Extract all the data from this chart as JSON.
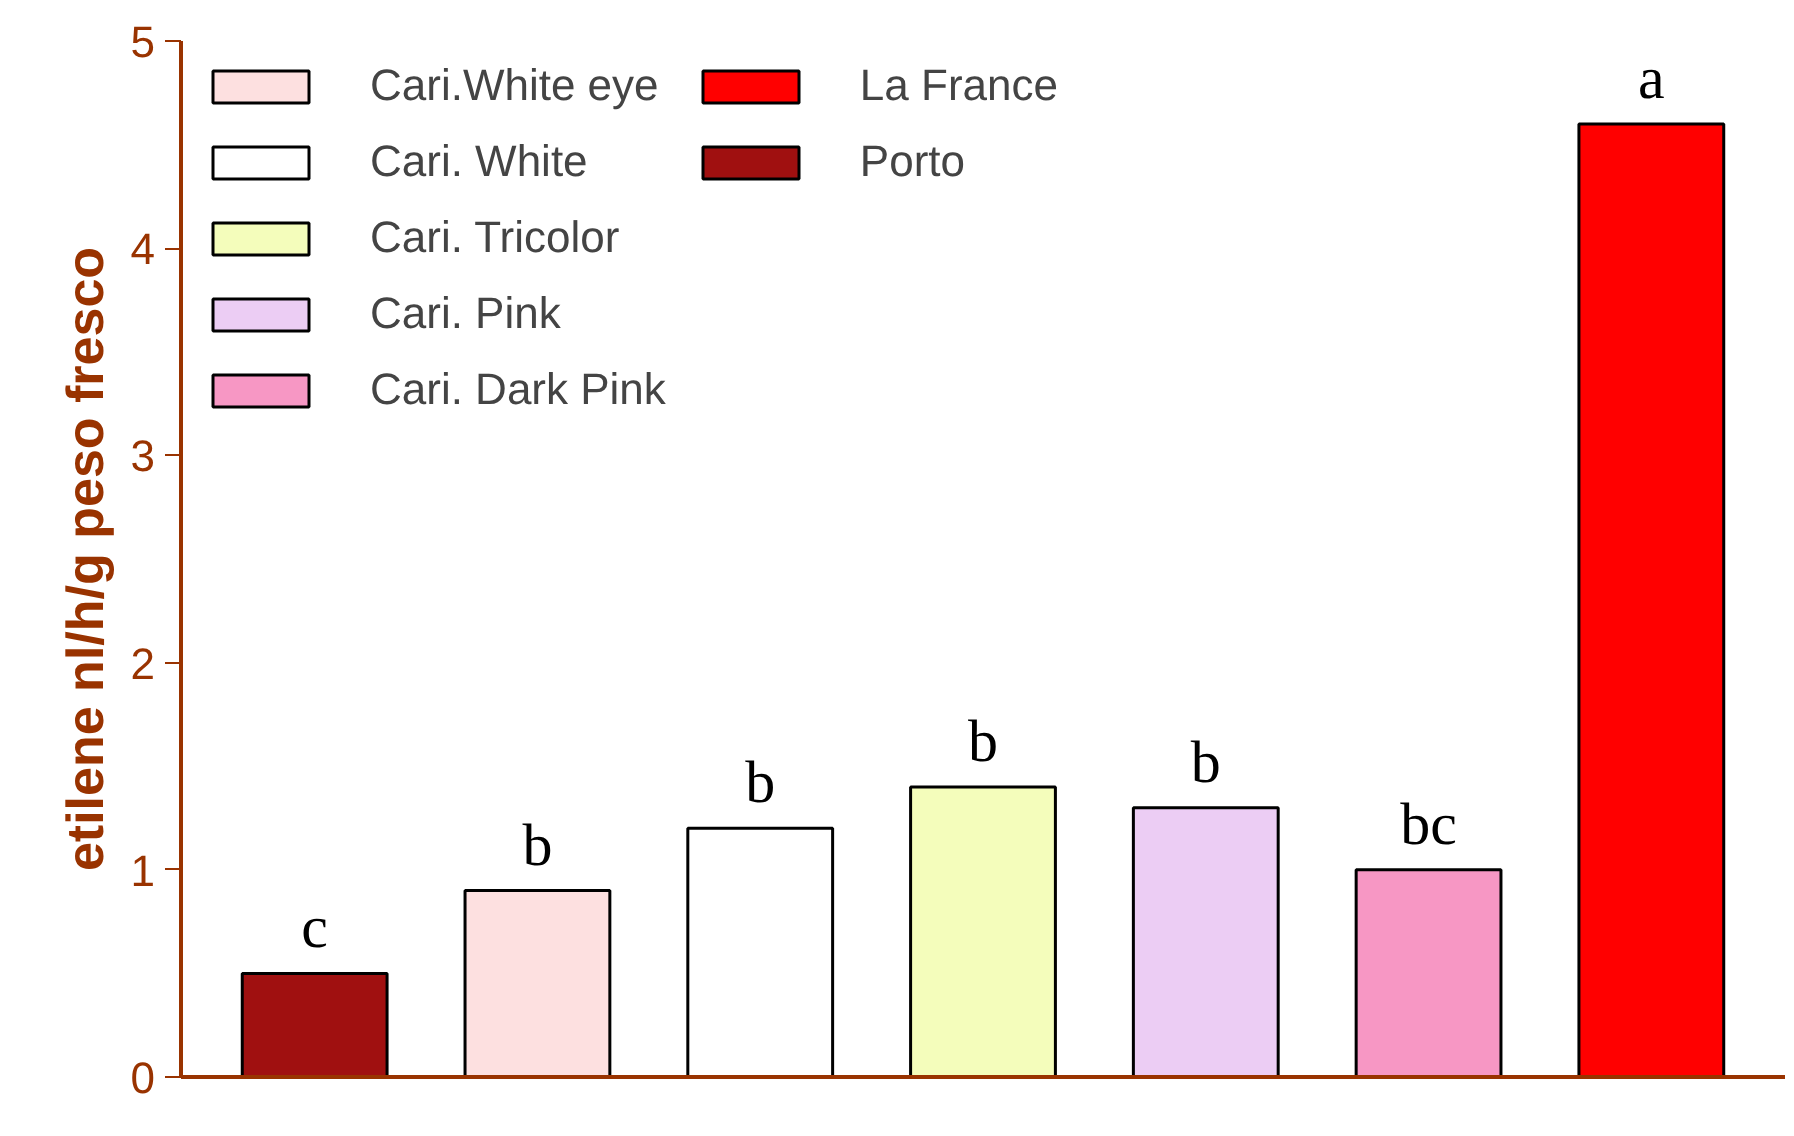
{
  "chart_data": {
    "type": "bar",
    "ylabel": "etilene nl/h/g peso fresco",
    "categories": [
      null,
      null,
      null,
      null,
      null,
      null,
      null
    ],
    "series": [
      {
        "name": "Porto",
        "color": "#a01010",
        "values": [
          0.5,
          null,
          null,
          null,
          null,
          null,
          null
        ],
        "value_labels": [
          "c",
          null,
          null,
          null,
          null,
          null,
          null
        ]
      },
      {
        "name": "Cari.White eye",
        "color": "#fde0e0",
        "values": [
          null,
          0.9,
          null,
          null,
          null,
          null,
          null
        ],
        "value_labels": [
          null,
          "b",
          null,
          null,
          null,
          null,
          null
        ]
      },
      {
        "name": "Cari. White",
        "color": "#ffffff",
        "values": [
          null,
          null,
          1.2,
          null,
          null,
          null,
          null
        ],
        "value_labels": [
          null,
          null,
          "b",
          null,
          null,
          null,
          null
        ]
      },
      {
        "name": "Cari. Tricolor",
        "color": "#f4fdbb",
        "values": [
          null,
          null,
          null,
          1.4,
          null,
          null,
          null
        ],
        "value_labels": [
          null,
          null,
          null,
          "b",
          null,
          null,
          null
        ]
      },
      {
        "name": "Cari. Pink",
        "color": "#eccdf4",
        "values": [
          null,
          null,
          null,
          null,
          1.3,
          null,
          null
        ],
        "value_labels": [
          null,
          null,
          null,
          null,
          "b",
          null,
          null
        ]
      },
      {
        "name": "Cari. Dark Pink",
        "color": "#f797c4",
        "values": [
          null,
          null,
          null,
          null,
          null,
          1.0,
          null
        ],
        "value_labels": [
          null,
          null,
          null,
          null,
          null,
          "bc",
          null
        ]
      },
      {
        "name": "La France",
        "color": "#ff0000",
        "values": [
          null,
          null,
          null,
          null,
          null,
          null,
          4.6
        ],
        "value_labels": [
          null,
          null,
          null,
          null,
          null,
          null,
          "a"
        ]
      }
    ],
    "ylim": [
      0,
      5
    ],
    "yticks": [
      0,
      1,
      2,
      3,
      4,
      5
    ],
    "grid": false,
    "legend": "top left",
    "tick_labels": "y"
  }
}
